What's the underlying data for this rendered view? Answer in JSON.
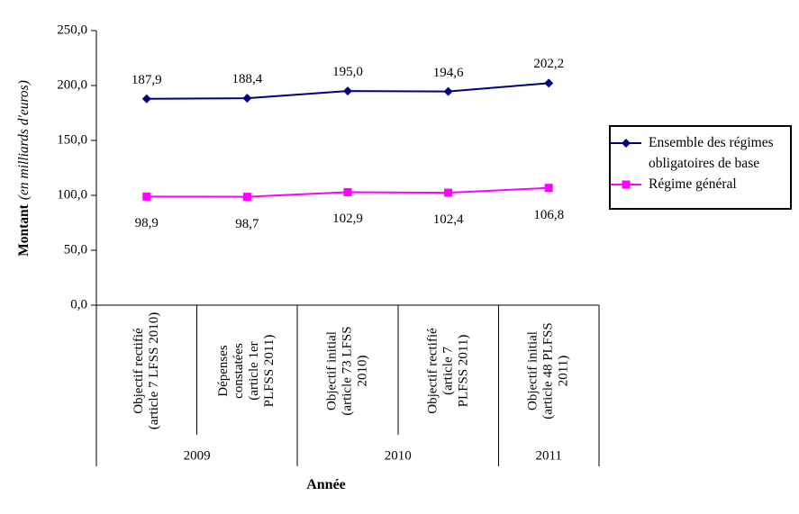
{
  "chart_data": {
    "type": "line",
    "y_axis": {
      "title_bold": "Montant",
      "title_italic": "(en milliards d'euros)",
      "min": 0,
      "max": 250,
      "step": 50,
      "tick_labels": [
        "0,0",
        "50,0",
        "100,0",
        "150,0",
        "200,0",
        "250,0"
      ]
    },
    "x_axis": {
      "title": "Année",
      "categories": [
        {
          "name": "Objectif rectifié (article 7 LFSS 2010)",
          "lines": [
            "Objectif rectifié",
            "(article 7 LFSS 2010)"
          ]
        },
        {
          "name": "Dépenses constatées (article 1er PLFSS 2011)",
          "lines": [
            "Dépenses",
            "constatées",
            "(article 1er",
            "PLFSS 2011)"
          ]
        },
        {
          "name": "Objectif initial (article 73 LFSS 2010)",
          "lines": [
            "Objectif initial",
            "(article 73 LFSS",
            "2010)"
          ]
        },
        {
          "name": "Objectif rectifié (article 7 PLFSS 2011)",
          "lines": [
            "Objectif rectifié",
            "(article 7",
            "PLFSS 2011)"
          ]
        },
        {
          "name": "Objectif initial (article 48 PLFSS 2011)",
          "lines": [
            "Objectif initial",
            "(article 48 PLFSS",
            "2011)"
          ]
        }
      ],
      "year_groups": [
        {
          "label": "2009",
          "span": 2
        },
        {
          "label": "2010",
          "span": 2
        },
        {
          "label": "2011",
          "span": 1
        }
      ]
    },
    "series": [
      {
        "name": "Ensemble des régimes obligatoires de base",
        "legend_lines": [
          "Ensemble des régimes",
          "obligatoires de base"
        ],
        "color": "#000080",
        "marker": "diamond",
        "values": [
          187.9,
          188.4,
          195.0,
          194.6,
          202.2
        ],
        "labels": [
          "187,9",
          "188,4",
          "195,0",
          "194,6",
          "202,2"
        ],
        "label_position": "above"
      },
      {
        "name": "Régime général",
        "legend_lines": [
          "Régime général"
        ],
        "color": "#FF00FF",
        "marker": "square",
        "values": [
          98.9,
          98.7,
          102.9,
          102.4,
          106.8
        ],
        "labels": [
          "98,9",
          "98,7",
          "102,9",
          "102,4",
          "106,8"
        ],
        "label_position": "below"
      }
    ],
    "legend_position": "right",
    "grid": false,
    "axis_color": "#000000",
    "background_color": "#ffffff"
  }
}
